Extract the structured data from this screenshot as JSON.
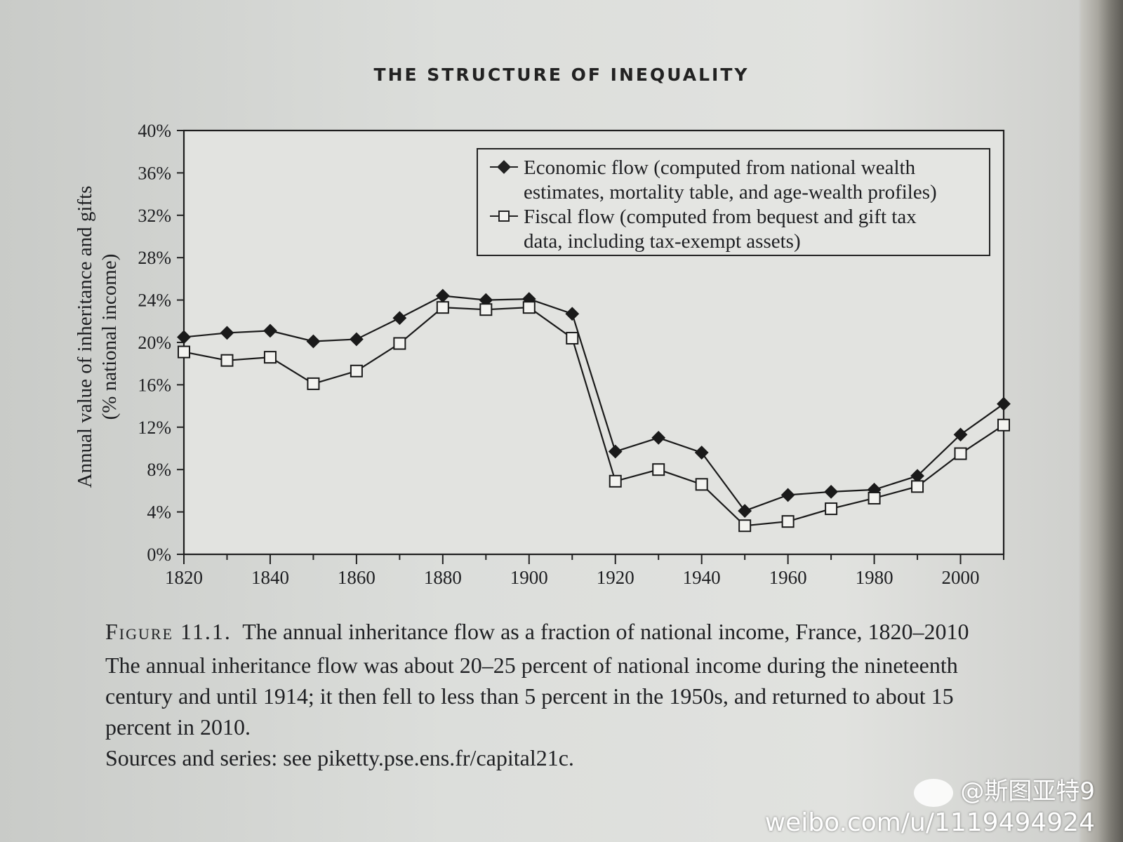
{
  "page": {
    "running_header": "THE STRUCTURE OF INEQUALITY"
  },
  "chart_data": {
    "type": "line",
    "ylabel": "Annual value of inheritance and gifts",
    "ylabel2": "(% national income)",
    "xlim": [
      1820,
      2010
    ],
    "ylim": [
      0,
      40
    ],
    "x_ticks": [
      1820,
      1840,
      1860,
      1880,
      1900,
      1920,
      1940,
      1960,
      1980,
      2000
    ],
    "x_tick_labels": [
      "1820",
      "1840",
      "1860",
      "1880",
      "1900",
      "1920",
      "1940",
      "1960",
      "1980",
      "2000"
    ],
    "y_ticks": [
      0,
      4,
      8,
      12,
      16,
      20,
      24,
      28,
      32,
      36,
      40
    ],
    "y_tick_labels": [
      "0%",
      "4%",
      "8%",
      "12%",
      "16%",
      "20%",
      "24%",
      "28%",
      "32%",
      "36%",
      "40%"
    ],
    "grid": "dashed vertical at x ticks, solid horizontal at y ticks",
    "legend_position": "top-right",
    "x": [
      1820,
      1830,
      1840,
      1850,
      1860,
      1870,
      1880,
      1890,
      1900,
      1910,
      1920,
      1930,
      1940,
      1950,
      1960,
      1970,
      1980,
      1990,
      2000,
      2010
    ],
    "series": [
      {
        "name": "Economic flow (computed from national wealth estimates, mortality table, and age-wealth profiles)",
        "legend_lines": [
          "Economic flow (computed from national wealth",
          "estimates, mortality table, and age-wealth profiles)"
        ],
        "marker": "diamond",
        "values": [
          20.5,
          20.9,
          21.1,
          20.1,
          20.3,
          22.3,
          24.4,
          24.0,
          24.1,
          22.7,
          9.7,
          11.0,
          9.6,
          4.1,
          5.6,
          5.9,
          6.1,
          7.4,
          11.3,
          14.2
        ]
      },
      {
        "name": "Fiscal flow (computed from bequest and gift tax data, including tax-exempt assets)",
        "legend_lines": [
          "Fiscal flow (computed from bequest and gift tax",
          "data, including tax-exempt assets)"
        ],
        "marker": "square",
        "values": [
          19.1,
          18.3,
          18.6,
          16.1,
          17.3,
          19.9,
          23.3,
          23.1,
          23.3,
          20.4,
          6.9,
          8.0,
          6.6,
          2.7,
          3.1,
          4.3,
          5.3,
          6.4,
          9.5,
          12.2
        ]
      }
    ]
  },
  "caption": {
    "figure_label": "Figure 11.1.",
    "title": "The annual inheritance flow as a fraction of national income, France, 1820–2010",
    "body": "The annual inheritance flow was about 20–25 percent of national income during the nineteenth century and until 1914; it then fell to less than 5 percent in the 1950s, and returned to about 15 percent in 2010.",
    "sources": "Sources and series: see piketty.pse.ens.fr/capital21c."
  },
  "watermark": {
    "handle": "@斯图亚特9",
    "url": "weibo.com/u/1119494924"
  }
}
